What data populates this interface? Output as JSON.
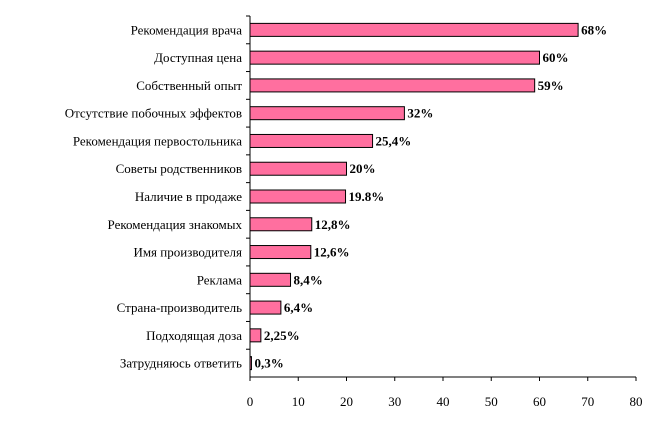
{
  "chart_data": {
    "type": "bar",
    "orientation": "horizontal",
    "categories": [
      "Рекомендация врача",
      "Доступная цена",
      "Собственный опыт",
      "Отсутствие побочных эффектов",
      "Рекомендация первостольника",
      "Советы родственников",
      "Наличие в продаже",
      "Рекомендация знакомых",
      "Имя производителя",
      "Реклама",
      "Страна-производитель",
      "Подходящая доза",
      "Затрудняюсь ответить"
    ],
    "values": [
      68,
      60,
      59,
      32,
      25.4,
      20,
      19.8,
      12.8,
      12.6,
      8.4,
      6.4,
      2.25,
      0.3
    ],
    "value_labels": [
      "68%",
      "60%",
      "59%",
      "32%",
      "25,4%",
      "20%",
      "19.8%",
      "12,8%",
      "12,6%",
      "8,4%",
      "6,4%",
      "2,25%",
      "0,3%"
    ],
    "xlim": [
      0,
      80
    ],
    "xticks": [
      0,
      10,
      20,
      30,
      40,
      50,
      60,
      70,
      80
    ],
    "title": "",
    "xlabel": "",
    "ylabel": "",
    "bar_color": "#ff6f9f",
    "grid": false,
    "legend": "none"
  }
}
